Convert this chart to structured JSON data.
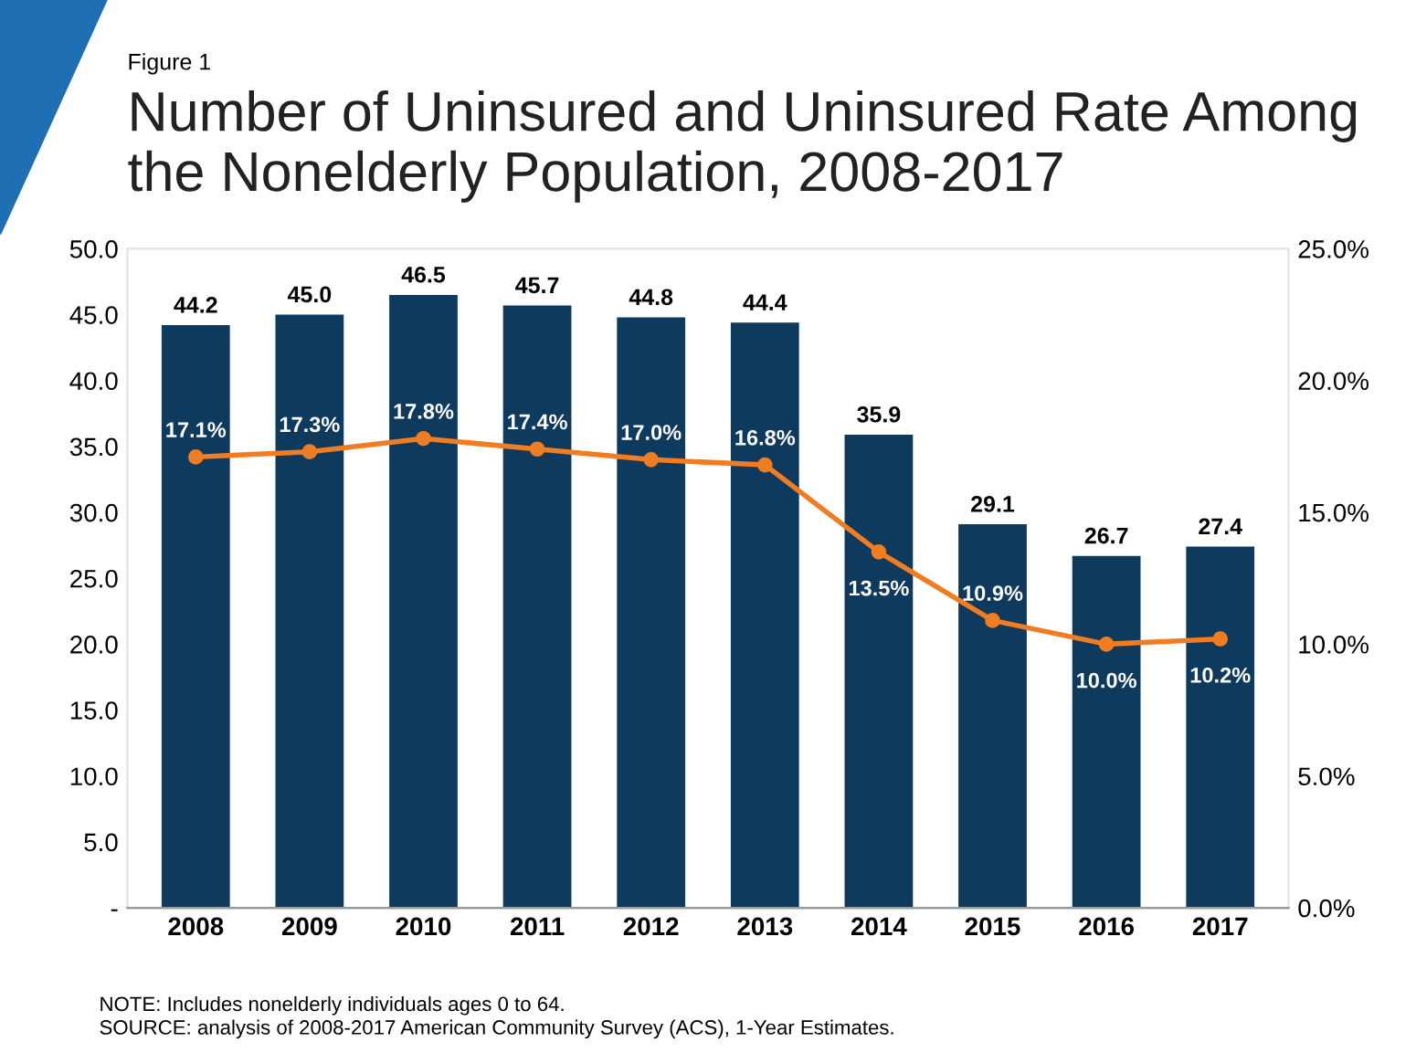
{
  "chart_data": {
    "type": "bar",
    "title": "Number of Uninsured and Uninsured Rate Among the Nonelderly Population, 2008-2017",
    "categories": [
      "2008",
      "2009",
      "2010",
      "2011",
      "2012",
      "2013",
      "2014",
      "2015",
      "2016",
      "2017"
    ],
    "series": [
      {
        "color": "#0e3a5e",
        "values": [
          44.2,
          45.0,
          46.5,
          45.7,
          44.8,
          44.4,
          35.9,
          29.1,
          26.7,
          27.4
        ],
        "value_labels": [
          "44.2",
          "45.0",
          "46.5",
          "45.7",
          "44.8",
          "44.4",
          "35.9",
          "29.1",
          "26.7",
          "27.4"
        ]
      },
      {
        "type": "line",
        "axis": "y2",
        "color": "#f07d22",
        "values": [
          17.1,
          17.3,
          17.8,
          17.4,
          17.0,
          16.8,
          13.5,
          10.9,
          10.0,
          10.2
        ],
        "value_labels": [
          "17.1%",
          "17.3%",
          "17.8%",
          "17.4%",
          "17.0%",
          "16.8%",
          "13.5%",
          "10.9%",
          "10.0%",
          "10.2%"
        ]
      }
    ],
    "ylim": [
      0,
      50
    ],
    "yticks": [
      {
        "value": 0,
        "label": "-"
      },
      {
        "value": 5,
        "label": "5.0"
      },
      {
        "value": 10,
        "label": "10.0"
      },
      {
        "value": 15,
        "label": "15.0"
      },
      {
        "value": 20,
        "label": "20.0"
      },
      {
        "value": 25,
        "label": "25.0"
      },
      {
        "value": 30,
        "label": "30.0"
      },
      {
        "value": 35,
        "label": "35.0"
      },
      {
        "value": 40,
        "label": "40.0"
      },
      {
        "value": 45,
        "label": "45.0"
      },
      {
        "value": 50,
        "label": "50.0"
      }
    ],
    "y2lim": [
      0,
      25
    ],
    "y2ticks": [
      {
        "value": 0,
        "label": "0.0%"
      },
      {
        "value": 5,
        "label": "5.0%"
      },
      {
        "value": 10,
        "label": "10.0%"
      },
      {
        "value": 15,
        "label": "15.0%"
      },
      {
        "value": 20,
        "label": "20.0%"
      },
      {
        "value": 25,
        "label": "25.0%"
      }
    ],
    "marker": "circle",
    "grid": false,
    "annotations": [
      "Figure 1",
      "NOTE: Includes nonelderly individuals ages 0 to 64.",
      "SOURCE: analysis of 2008-2017 American Community Survey (ACS), 1-Year Estimates."
    ]
  }
}
